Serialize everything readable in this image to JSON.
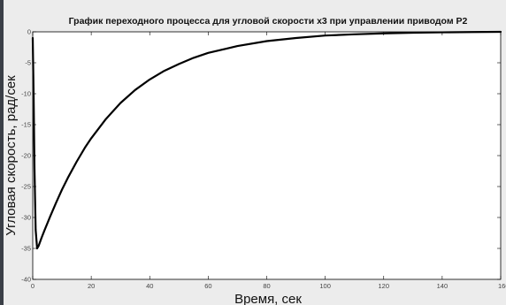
{
  "chart_data": {
    "type": "line",
    "title": "График переходного процесса для угловой скорости x3 при управлении приводом P2",
    "xlabel": "Время, сек",
    "ylabel": "Угловая скорость, рад/сек",
    "xlim": [
      0,
      160
    ],
    "ylim": [
      -40,
      0
    ],
    "xticks": [
      "0",
      "20",
      "40",
      "60",
      "80",
      "100",
      "120",
      "140",
      "160"
    ],
    "yticks": [
      "0",
      "-5",
      "-10",
      "-15",
      "-20",
      "-25",
      "-30",
      "-35",
      "-40"
    ],
    "grid": false,
    "legend": "none",
    "series": [
      {
        "color": "#000000",
        "x": [
          0,
          0.3,
          0.6,
          1.0,
          1.5,
          2.0,
          3,
          4,
          6,
          8,
          10,
          12,
          15,
          18,
          20,
          25,
          30,
          35,
          40,
          45,
          50,
          55,
          60,
          70,
          80,
          90,
          100,
          110,
          120,
          130,
          140,
          150,
          160
        ],
        "y": [
          -1.0,
          -10,
          -22,
          -32,
          -35.0,
          -34.6,
          -33.3,
          -32.1,
          -29.8,
          -27.6,
          -25.5,
          -23.6,
          -21.0,
          -18.6,
          -17.2,
          -14.1,
          -11.5,
          -9.4,
          -7.7,
          -6.3,
          -5.2,
          -4.2,
          -3.4,
          -2.3,
          -1.5,
          -1.0,
          -0.6,
          -0.4,
          -0.25,
          -0.15,
          -0.08,
          -0.04,
          0.0
        ]
      }
    ]
  }
}
